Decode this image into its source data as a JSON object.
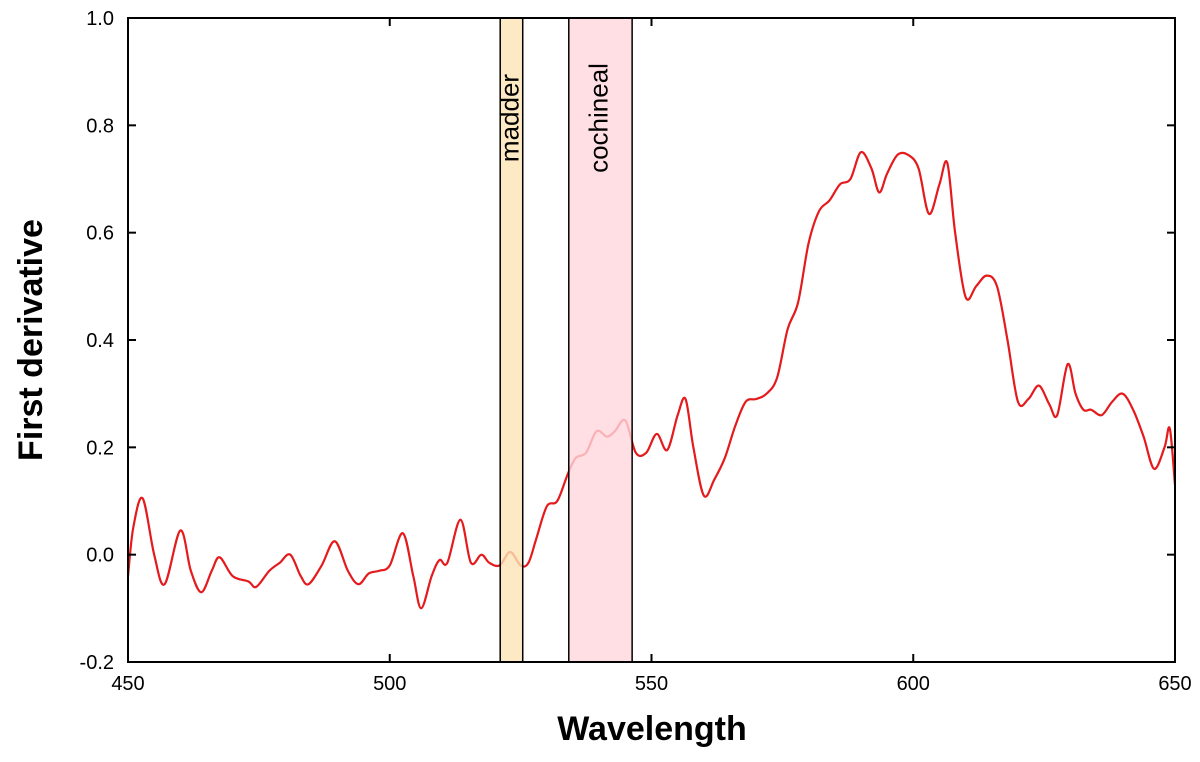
{
  "chart_data": {
    "type": "line",
    "xlabel": "Wavelength",
    "ylabel": "First derivative",
    "xlim": [
      450,
      650
    ],
    "xticks": [
      450,
      500,
      550,
      600,
      650
    ],
    "ylim": [
      -0.2,
      1.0
    ],
    "yticks": [
      -0.2,
      {
        "value": 0,
        "label": "0.0"
      },
      0.2,
      0.4,
      0.6,
      0.8,
      {
        "value": 1,
        "label": "1.0"
      }
    ],
    "bands": [
      {
        "label": "madder",
        "range": [
          521.1,
          525.4
        ],
        "color": "#fde3b4"
      },
      {
        "label": "cochineal",
        "range": [
          534.2,
          546.3
        ],
        "color": "#ffd7dd"
      }
    ],
    "series": [
      {
        "color": "#e41a1c",
        "x": [
          450,
          451,
          452.8,
          455,
          457,
          460,
          462,
          464,
          466,
          467.5,
          470,
          473,
          474.5,
          477,
          479,
          481,
          483,
          484.5,
          487,
          489.5,
          492,
          494,
          496,
          498,
          500,
          502.5,
          504.5,
          506,
          508,
          509.5,
          511,
          513.5,
          515.5,
          517.5,
          519,
          521,
          523,
          525,
          526.5,
          528,
          530,
          532,
          534,
          535.5,
          537.5,
          539.5,
          541.5,
          543,
          545,
          547,
          549,
          551,
          553,
          555,
          556.5,
          558,
          560,
          562,
          564,
          566,
          568,
          570,
          572,
          574,
          576,
          578,
          580,
          582,
          584,
          586,
          588,
          590,
          592,
          593.5,
          595,
          597,
          599,
          601,
          603,
          605,
          606.5,
          608,
          610,
          612,
          614,
          616,
          618,
          620,
          622,
          624,
          626,
          627.5,
          629.5,
          631,
          632.5,
          634,
          636,
          638,
          640,
          642,
          644,
          646,
          648,
          649,
          650
        ],
        "values": [
          -0.04,
          0.05,
          0.105,
          0.0,
          -0.055,
          0.045,
          -0.03,
          -0.07,
          -0.03,
          -0.005,
          -0.04,
          -0.05,
          -0.06,
          -0.03,
          -0.015,
          0.0,
          -0.04,
          -0.055,
          -0.02,
          0.025,
          -0.03,
          -0.055,
          -0.035,
          -0.03,
          -0.02,
          0.04,
          -0.04,
          -0.1,
          -0.04,
          -0.01,
          -0.015,
          0.065,
          -0.015,
          0.0,
          -0.015,
          -0.02,
          0.005,
          -0.02,
          -0.015,
          0.03,
          0.09,
          0.1,
          0.15,
          0.18,
          0.19,
          0.23,
          0.22,
          0.23,
          0.25,
          0.19,
          0.19,
          0.225,
          0.195,
          0.26,
          0.29,
          0.2,
          0.11,
          0.14,
          0.18,
          0.24,
          0.285,
          0.29,
          0.3,
          0.33,
          0.42,
          0.47,
          0.58,
          0.64,
          0.66,
          0.69,
          0.7,
          0.75,
          0.72,
          0.675,
          0.71,
          0.745,
          0.745,
          0.72,
          0.635,
          0.69,
          0.73,
          0.6,
          0.48,
          0.5,
          0.52,
          0.5,
          0.4,
          0.285,
          0.29,
          0.315,
          0.28,
          0.26,
          0.355,
          0.3,
          0.27,
          0.27,
          0.26,
          0.285,
          0.3,
          0.27,
          0.22,
          0.16,
          0.2,
          0.235,
          0.13
        ]
      }
    ]
  }
}
